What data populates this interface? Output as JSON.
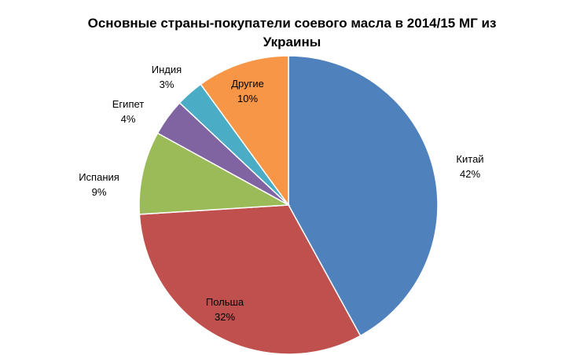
{
  "chart_data": {
    "type": "pie",
    "title": "Основные страны-покупатели соевого масла в 2014/15 МГ из Украины",
    "slices": [
      {
        "label": "Китай",
        "value": 42,
        "display": "42%",
        "color": "#4F81BD"
      },
      {
        "label": "Польша",
        "value": 32,
        "display": "32%",
        "color": "#C0504D"
      },
      {
        "label": "Испания",
        "value": 9,
        "display": "9%",
        "color": "#9BBB59"
      },
      {
        "label": "Египет",
        "value": 4,
        "display": "4%",
        "color": "#8064A2"
      },
      {
        "label": "Индия",
        "value": 3,
        "display": "3%",
        "color": "#4BACC6"
      },
      {
        "label": "Другие",
        "value": 10,
        "display": "10%",
        "color": "#F79646"
      }
    ],
    "legend": "none",
    "data_labels": "category and percentage"
  }
}
